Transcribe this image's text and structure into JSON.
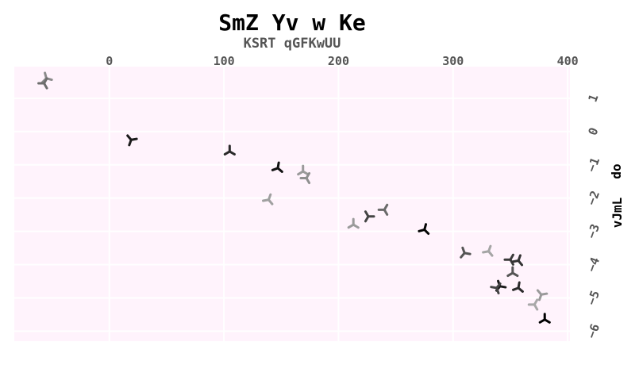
{
  "chart_data": {
    "type": "scatter",
    "title": "SmZ Yv w Ke",
    "subtitle": "KSRT qGFKwUU",
    "xlabel": "",
    "ylabel": [
      "vJmL",
      "do"
    ],
    "xlim": [
      -83,
      402
    ],
    "ylim": [
      -6.3,
      1.95
    ],
    "x_ticks": [
      0,
      100,
      200,
      300,
      400
    ],
    "y_ticks": [
      1,
      0,
      -1,
      -2,
      -3,
      -4,
      -5,
      -6
    ],
    "x_tick_labels": [
      "0",
      "100",
      "200",
      "300",
      "400"
    ],
    "y_tick_labels": [
      "1",
      "0",
      "−1",
      "−2",
      "−3",
      "−4",
      "−5",
      "−6"
    ],
    "grid": true,
    "marker": "tri-down",
    "background": "#fff3fc",
    "points": [
      {
        "x": -55,
        "y": 1.6,
        "shade": "#8a8a8a",
        "rot": 45
      },
      {
        "x": -57,
        "y": 1.45,
        "shade": "#6e6e6e",
        "rot": 90
      },
      {
        "x": 19,
        "y": -0.25,
        "shade": "#1a1a1a",
        "rot": 20
      },
      {
        "x": 105,
        "y": -0.6,
        "shade": "#2a2a2a",
        "rot": 60
      },
      {
        "x": 147,
        "y": -1.1,
        "shade": "#111111",
        "rot": 70
      },
      {
        "x": 169,
        "y": -1.2,
        "shade": "#9a9a9a",
        "rot": 300
      },
      {
        "x": 172,
        "y": -1.4,
        "shade": "#8f8f8f",
        "rot": 330
      },
      {
        "x": 139,
        "y": -2.05,
        "shade": "#a0a0a0",
        "rot": 320
      },
      {
        "x": 226,
        "y": -2.55,
        "shade": "#444444",
        "rot": 30
      },
      {
        "x": 240,
        "y": -2.35,
        "shade": "#6a6a6a",
        "rot": 330
      },
      {
        "x": 213,
        "y": -2.8,
        "shade": "#9a9a9a",
        "rot": 60
      },
      {
        "x": 275,
        "y": -2.95,
        "shade": "#050505",
        "rot": 75
      },
      {
        "x": 310,
        "y": -3.65,
        "shade": "#555555",
        "rot": 40
      },
      {
        "x": 331,
        "y": -3.6,
        "shade": "#a5a5a5",
        "rot": 320
      },
      {
        "x": 350,
        "y": -3.85,
        "shade": "#3a3a3a",
        "rot": 90
      },
      {
        "x": 357,
        "y": -3.88,
        "shade": "#333333",
        "rot": 80
      },
      {
        "x": 352,
        "y": -4.25,
        "shade": "#555555",
        "rot": 60
      },
      {
        "x": 341,
        "y": -4.65,
        "shade": "#1a1a1a",
        "rot": 40
      },
      {
        "x": 338,
        "y": -4.7,
        "shade": "#444444",
        "rot": 100
      },
      {
        "x": 357,
        "y": -4.7,
        "shade": "#2a2a2a",
        "rot": 70
      },
      {
        "x": 377,
        "y": -4.9,
        "shade": "#9a9a9a",
        "rot": 20
      },
      {
        "x": 371,
        "y": -5.2,
        "shade": "#a8a8a8",
        "rot": 90
      },
      {
        "x": 380,
        "y": -5.65,
        "shade": "#000000",
        "rot": 60
      }
    ]
  }
}
